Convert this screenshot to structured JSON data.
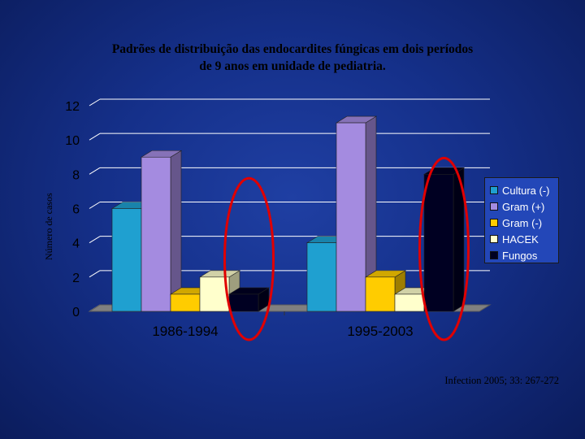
{
  "slide": {
    "title_line1": "Padrões de distribuição  das  endocardites  fúngicas  em dois períodos",
    "title_line2": "de 9 anos em unidade de pediatria.",
    "source": "Infection 2005; 33: 267-272"
  },
  "chart_data": {
    "type": "bar",
    "ylabel": "Número de casos",
    "ylim": [
      0,
      12
    ],
    "yticks": [
      "0",
      "2",
      "4",
      "6",
      "8",
      "10",
      "12"
    ],
    "categories": [
      "1986-1994",
      "1995-2003"
    ],
    "series": [
      {
        "name": "Cultura (-)",
        "color": "#1fa0d0",
        "values": [
          6,
          4
        ]
      },
      {
        "name": "Gram (+)",
        "color": "#a48be0",
        "values": [
          9,
          11
        ]
      },
      {
        "name": "Gram (-)",
        "color": "#ffcc00",
        "values": [
          1,
          2
        ]
      },
      {
        "name": "HACEK",
        "color": "#ffffcc",
        "values": [
          2,
          1
        ]
      },
      {
        "name": "Fungos",
        "color": "#000022",
        "values": [
          1,
          8
        ]
      }
    ],
    "grid": true,
    "legend": "right",
    "highlight": "Fungos"
  }
}
